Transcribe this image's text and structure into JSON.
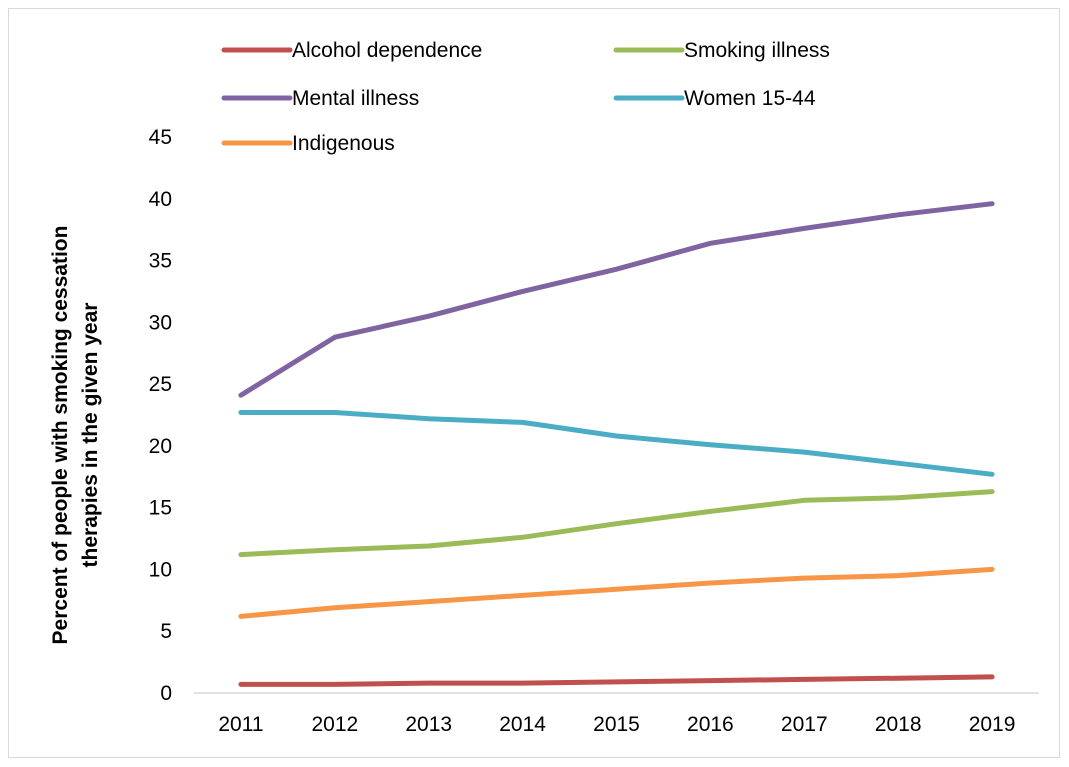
{
  "chart_data": {
    "type": "line",
    "title": "",
    "xlabel": "",
    "ylabel": [
      "Percent of people with smoking cessation",
      "therapies in the given year"
    ],
    "categories": [
      "2011",
      "2012",
      "2013",
      "2014",
      "2015",
      "2016",
      "2017",
      "2018",
      "2019"
    ],
    "ylim": [
      0,
      45
    ],
    "yticks": [
      "0",
      "5",
      "10",
      "15",
      "20",
      "25",
      "30",
      "35",
      "40",
      "45"
    ],
    "grid": false,
    "legend_position": "top",
    "series": [
      {
        "name": "Alcohol dependence",
        "color": "#c0504d",
        "values": [
          0.7,
          0.7,
          0.8,
          0.8,
          0.9,
          1.0,
          1.1,
          1.2,
          1.3
        ]
      },
      {
        "name": "Smoking illness",
        "color": "#9bbb59",
        "values": [
          11.2,
          11.6,
          11.9,
          12.6,
          13.7,
          14.7,
          15.6,
          15.8,
          16.3
        ]
      },
      {
        "name": "Mental illness",
        "color": "#8064a2",
        "values": [
          24.1,
          28.8,
          30.5,
          32.5,
          34.3,
          36.4,
          37.6,
          38.7,
          39.6
        ]
      },
      {
        "name": "Women 15-44",
        "color": "#4bacc6",
        "values": [
          22.7,
          22.7,
          22.2,
          21.9,
          20.8,
          20.1,
          19.5,
          18.6,
          17.7
        ]
      },
      {
        "name": "Indigenous",
        "color": "#f79646",
        "values": [
          6.2,
          6.9,
          7.4,
          7.9,
          8.4,
          8.9,
          9.3,
          9.5,
          10.0
        ]
      }
    ]
  }
}
